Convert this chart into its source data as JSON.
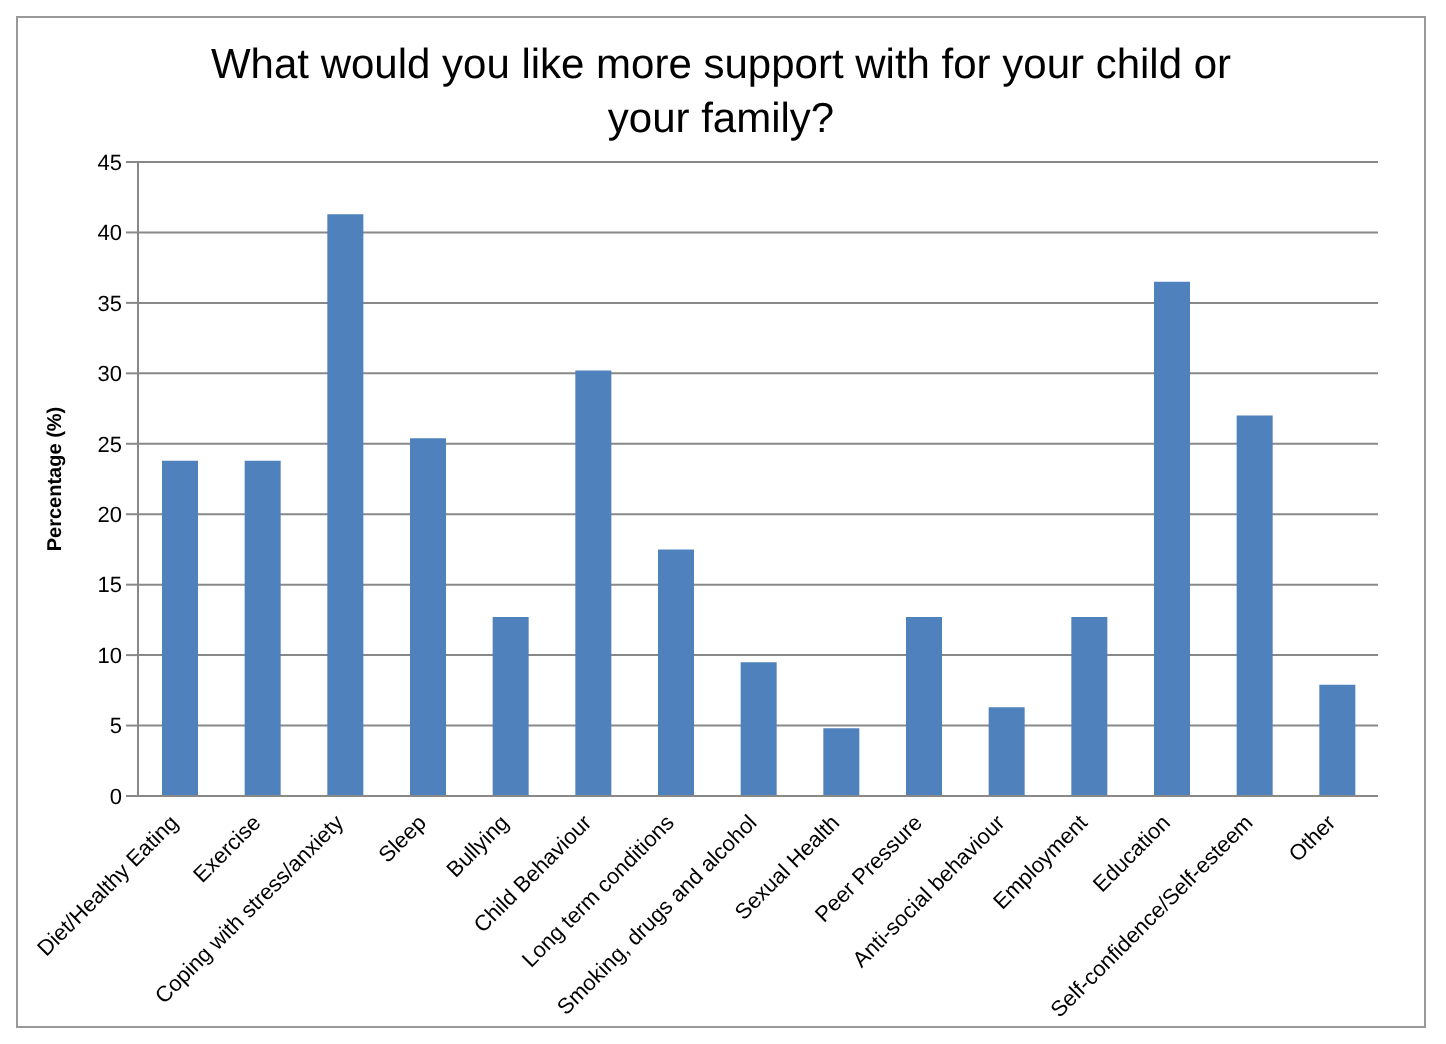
{
  "chart_data": {
    "type": "bar",
    "title": "What would you like more support with for your child or your family?",
    "ylabel": "Percentage (%)",
    "categories": [
      "Diet/Healthy Eating",
      "Exercise",
      "Coping with stress/anxiety",
      "Sleep",
      "Bullying",
      "Child Behaviour",
      "Long term conditions",
      "Smoking, drugs and alcohol",
      "Sexual Health",
      "Peer Pressure",
      "Anti-social behaviour",
      "Employment",
      "Education",
      "Self-confidence/Self-esteem",
      "Other"
    ],
    "values": [
      23.8,
      23.8,
      41.3,
      25.4,
      12.7,
      30.2,
      17.5,
      9.5,
      4.8,
      12.7,
      6.3,
      12.7,
      36.5,
      27.0,
      7.9
    ],
    "color": "#4f81bd",
    "ylim": [
      0,
      45
    ],
    "yticks": [
      0,
      5,
      10,
      15,
      20,
      25,
      30,
      35,
      40,
      45
    ],
    "grid": "y",
    "legend": false
  }
}
